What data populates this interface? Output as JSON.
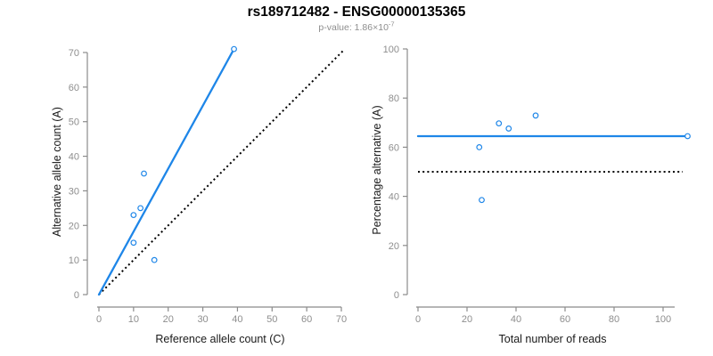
{
  "header": {
    "title": "rs189712482 - ENSG00000135365",
    "pvalue_base": "p-value: 1.86×10",
    "pvalue_exponent": "-7"
  },
  "colors": {
    "accent_blue": "#1e86e8",
    "line_black": "#000000",
    "axis_gray": "#8b8b8b",
    "tick_label_gray": "#8e8e8e",
    "axis_title_color": "#1a1a1a",
    "marker_fill": "#ffffff",
    "background": "#ffffff"
  },
  "chart_data": [
    {
      "type": "scatter",
      "panel": "left",
      "xlabel": "Reference allele count (C)",
      "ylabel": "Alternative allele count (A)",
      "xlim": [
        0,
        70
      ],
      "ylim": [
        0,
        70
      ],
      "xticks": [
        0,
        10,
        20,
        30,
        40,
        50,
        60,
        70
      ],
      "yticks": [
        0,
        10,
        20,
        30,
        40,
        50,
        60,
        70
      ],
      "grid": false,
      "legend": false,
      "points": [
        [
          13,
          35
        ],
        [
          12,
          25
        ],
        [
          10,
          23
        ],
        [
          10,
          15
        ],
        [
          16,
          10
        ],
        [
          39,
          71
        ]
      ],
      "lines": [
        {
          "name": "identity-line",
          "style": "dotted",
          "color": "#000000",
          "from": [
            0,
            0
          ],
          "to": [
            70.5,
            70.5
          ]
        },
        {
          "name": "fit-line",
          "style": "solid",
          "color": "#1e86e8",
          "from": [
            0,
            0
          ],
          "to": [
            39,
            71
          ]
        }
      ]
    },
    {
      "type": "scatter",
      "panel": "right",
      "xlabel": "Total number of reads",
      "ylabel": "Percentage alternative (A)",
      "xlim": [
        0,
        110
      ],
      "ylim": [
        0,
        100
      ],
      "xticks": [
        0,
        20,
        40,
        60,
        80,
        100
      ],
      "yticks": [
        0,
        20,
        40,
        60,
        80,
        100
      ],
      "grid": false,
      "legend": false,
      "points": [
        [
          48,
          72.9
        ],
        [
          37,
          67.6
        ],
        [
          33,
          69.7
        ],
        [
          25,
          60
        ],
        [
          26,
          38.5
        ],
        [
          110,
          64.5
        ]
      ],
      "lines": [
        {
          "name": "expected-percentage-line",
          "style": "dotted",
          "color": "#000000",
          "from": [
            0,
            50
          ],
          "to": [
            108,
            50
          ]
        },
        {
          "name": "mean-percentage-line",
          "style": "solid",
          "color": "#1e86e8",
          "from": [
            0,
            64.5
          ],
          "to": [
            110,
            64.5
          ]
        }
      ]
    }
  ]
}
